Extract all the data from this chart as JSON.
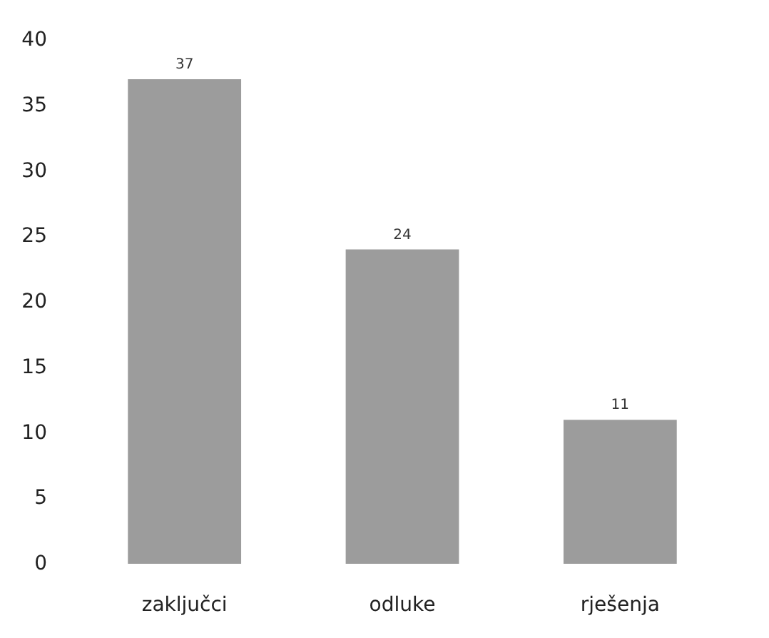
{
  "chart_data": {
    "type": "bar",
    "categories": [
      "zaključci",
      "odluke",
      "rješenja"
    ],
    "values": [
      37,
      24,
      11
    ],
    "color": "#9c9c9c",
    "ylim": [
      0,
      40
    ],
    "yticks": [
      0,
      5,
      10,
      15,
      20,
      25,
      30,
      35,
      40
    ],
    "grid": false,
    "data_labels": true
  }
}
